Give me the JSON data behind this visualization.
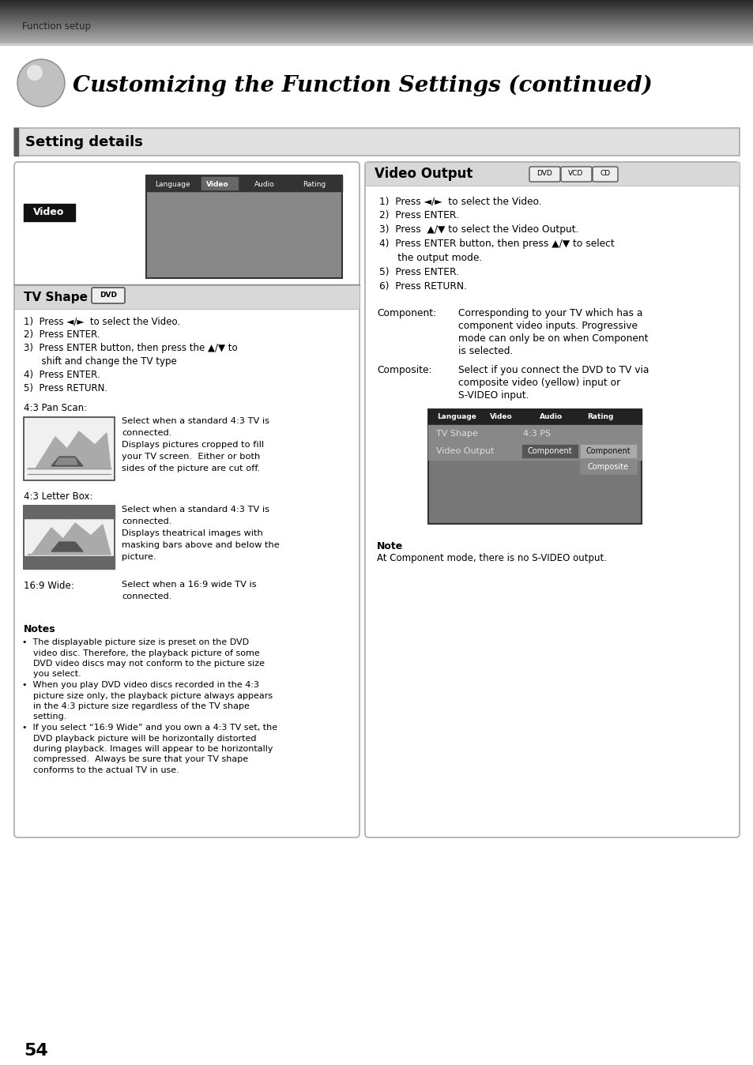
{
  "page_bg": "#ffffff",
  "header_text": "Function setup",
  "title": "Customizing the Function Settings (continued)",
  "section_header": "Setting details",
  "page_number": "54",
  "left_panel": {
    "video_label": "Video",
    "tv_shape_title": "TV Shape",
    "tv_shape_steps": [
      "1)  Press ◄/►  to select the Video.",
      "2)  Press ENTER.",
      "3)  Press ENTER button, then press the ▲/▼ to",
      "      shift and change the TV type",
      "4)  Press ENTER.",
      "5)  Press RETURN."
    ],
    "pan_scan_title": "4:3 Pan Scan:",
    "pan_scan_desc": [
      "Select when a standard 4:3 TV is",
      "connected.",
      "Displays pictures cropped to fill",
      "your TV screen.  Either or both",
      "sides of the picture are cut off."
    ],
    "letter_box_title": "4:3 Letter Box:",
    "letter_box_desc": [
      "Select when a standard 4:3 TV is",
      "connected.",
      "Displays theatrical images with",
      "masking bars above and below the",
      "picture."
    ],
    "wide_title": "16:9 Wide:",
    "wide_desc": [
      "Select when a 16:9 wide TV is",
      "connected."
    ],
    "notes_title": "Notes",
    "notes": [
      "•  The displayable picture size is preset on the DVD",
      "    video disc. Therefore, the playback picture of some",
      "    DVD video discs may not conform to the picture size",
      "    you select.",
      "•  When you play DVD video discs recorded in the 4:3",
      "    picture size only, the playback picture always appears",
      "    in the 4:3 picture size regardless of the TV shape",
      "    setting.",
      "•  If you select “16:9 Wide” and you own a 4:3 TV set, the",
      "    DVD playback picture will be horizontally distorted",
      "    during playback. Images will appear to be horizontally",
      "    compressed.  Always be sure that your TV shape",
      "    conforms to the actual TV in use."
    ]
  },
  "right_panel": {
    "video_output_title": "Video Output",
    "steps": [
      "1)  Press ◄/►  to select the Video.",
      "2)  Press ENTER.",
      "3)  Press  ▲/▼ to select the Video Output.",
      "4)  Press ENTER button, then press ▲/▼ to select",
      "      the output mode.",
      "5)  Press ENTER.",
      "6)  Press RETURN."
    ],
    "component_label": "Component:",
    "component_desc": [
      "Corresponding to your TV which has a",
      "component video inputs. Progressive",
      "mode can only be on when Component",
      "is selected."
    ],
    "composite_label": "Composite:",
    "composite_desc": [
      "Select if you connect the DVD to TV via",
      "composite video (yellow) input or",
      "S-VIDEO input."
    ],
    "note_title": "Note",
    "note_desc": "At Component mode, there is no S-VIDEO output."
  }
}
